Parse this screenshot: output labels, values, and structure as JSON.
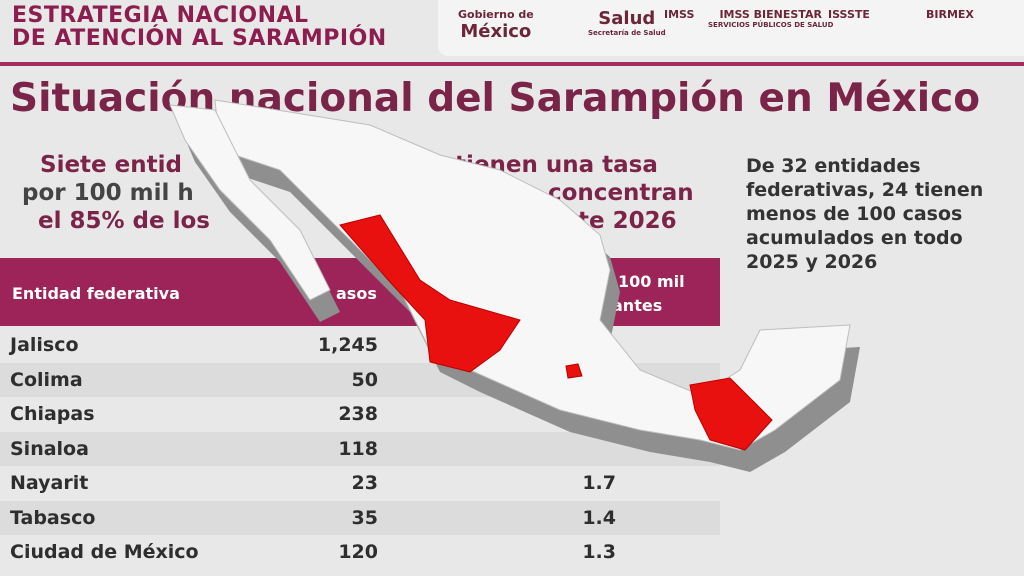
{
  "header": {
    "strategy": [
      "ESTRATEGIA NACIONAL",
      "DE ATENCIÓN AL SARAMPIÓN"
    ],
    "logos": [
      {
        "label": "Gobierno de",
        "sub": "México"
      },
      {
        "label": "Salud",
        "sub": "Secretaría de Salud"
      },
      {
        "label": "IMSS",
        "sub": ""
      },
      {
        "label": "IMSS BIENESTAR",
        "sub": "SERVICIOS PÚBLICOS DE SALUD"
      },
      {
        "label": "ISSSTE",
        "sub": ""
      },
      {
        "label": "BIRMEX",
        "sub": ""
      }
    ]
  },
  "title": "Situación nacional del Sarampión en México",
  "subtitle_fragments": [
    "Siete entid",
    "tienen una tasa",
    "por 100 mil h",
    "concentran",
    "el 85% de los",
    "te 2026"
  ],
  "side_note": [
    "De 32 entidades",
    "federativas, 24 tienen",
    "menos de 100 casos",
    "acumulados en todo",
    "2025 y 2026"
  ],
  "table": {
    "headers": [
      "Entidad federativa",
      "asos",
      "100 mil",
      "antes"
    ],
    "rows": [
      [
        "Jalisco",
        "1,245"
      ],
      [
        "Colima",
        "50"
      ],
      [
        "Chiapas",
        "238"
      ],
      [
        "Sinaloa",
        "118"
      ],
      [
        "Nayarit",
        "23",
        "1.7"
      ],
      [
        "Tabasco",
        "35",
        "1.4"
      ],
      [
        "Ciudad de México",
        "120",
        "1.3"
      ]
    ]
  }
}
